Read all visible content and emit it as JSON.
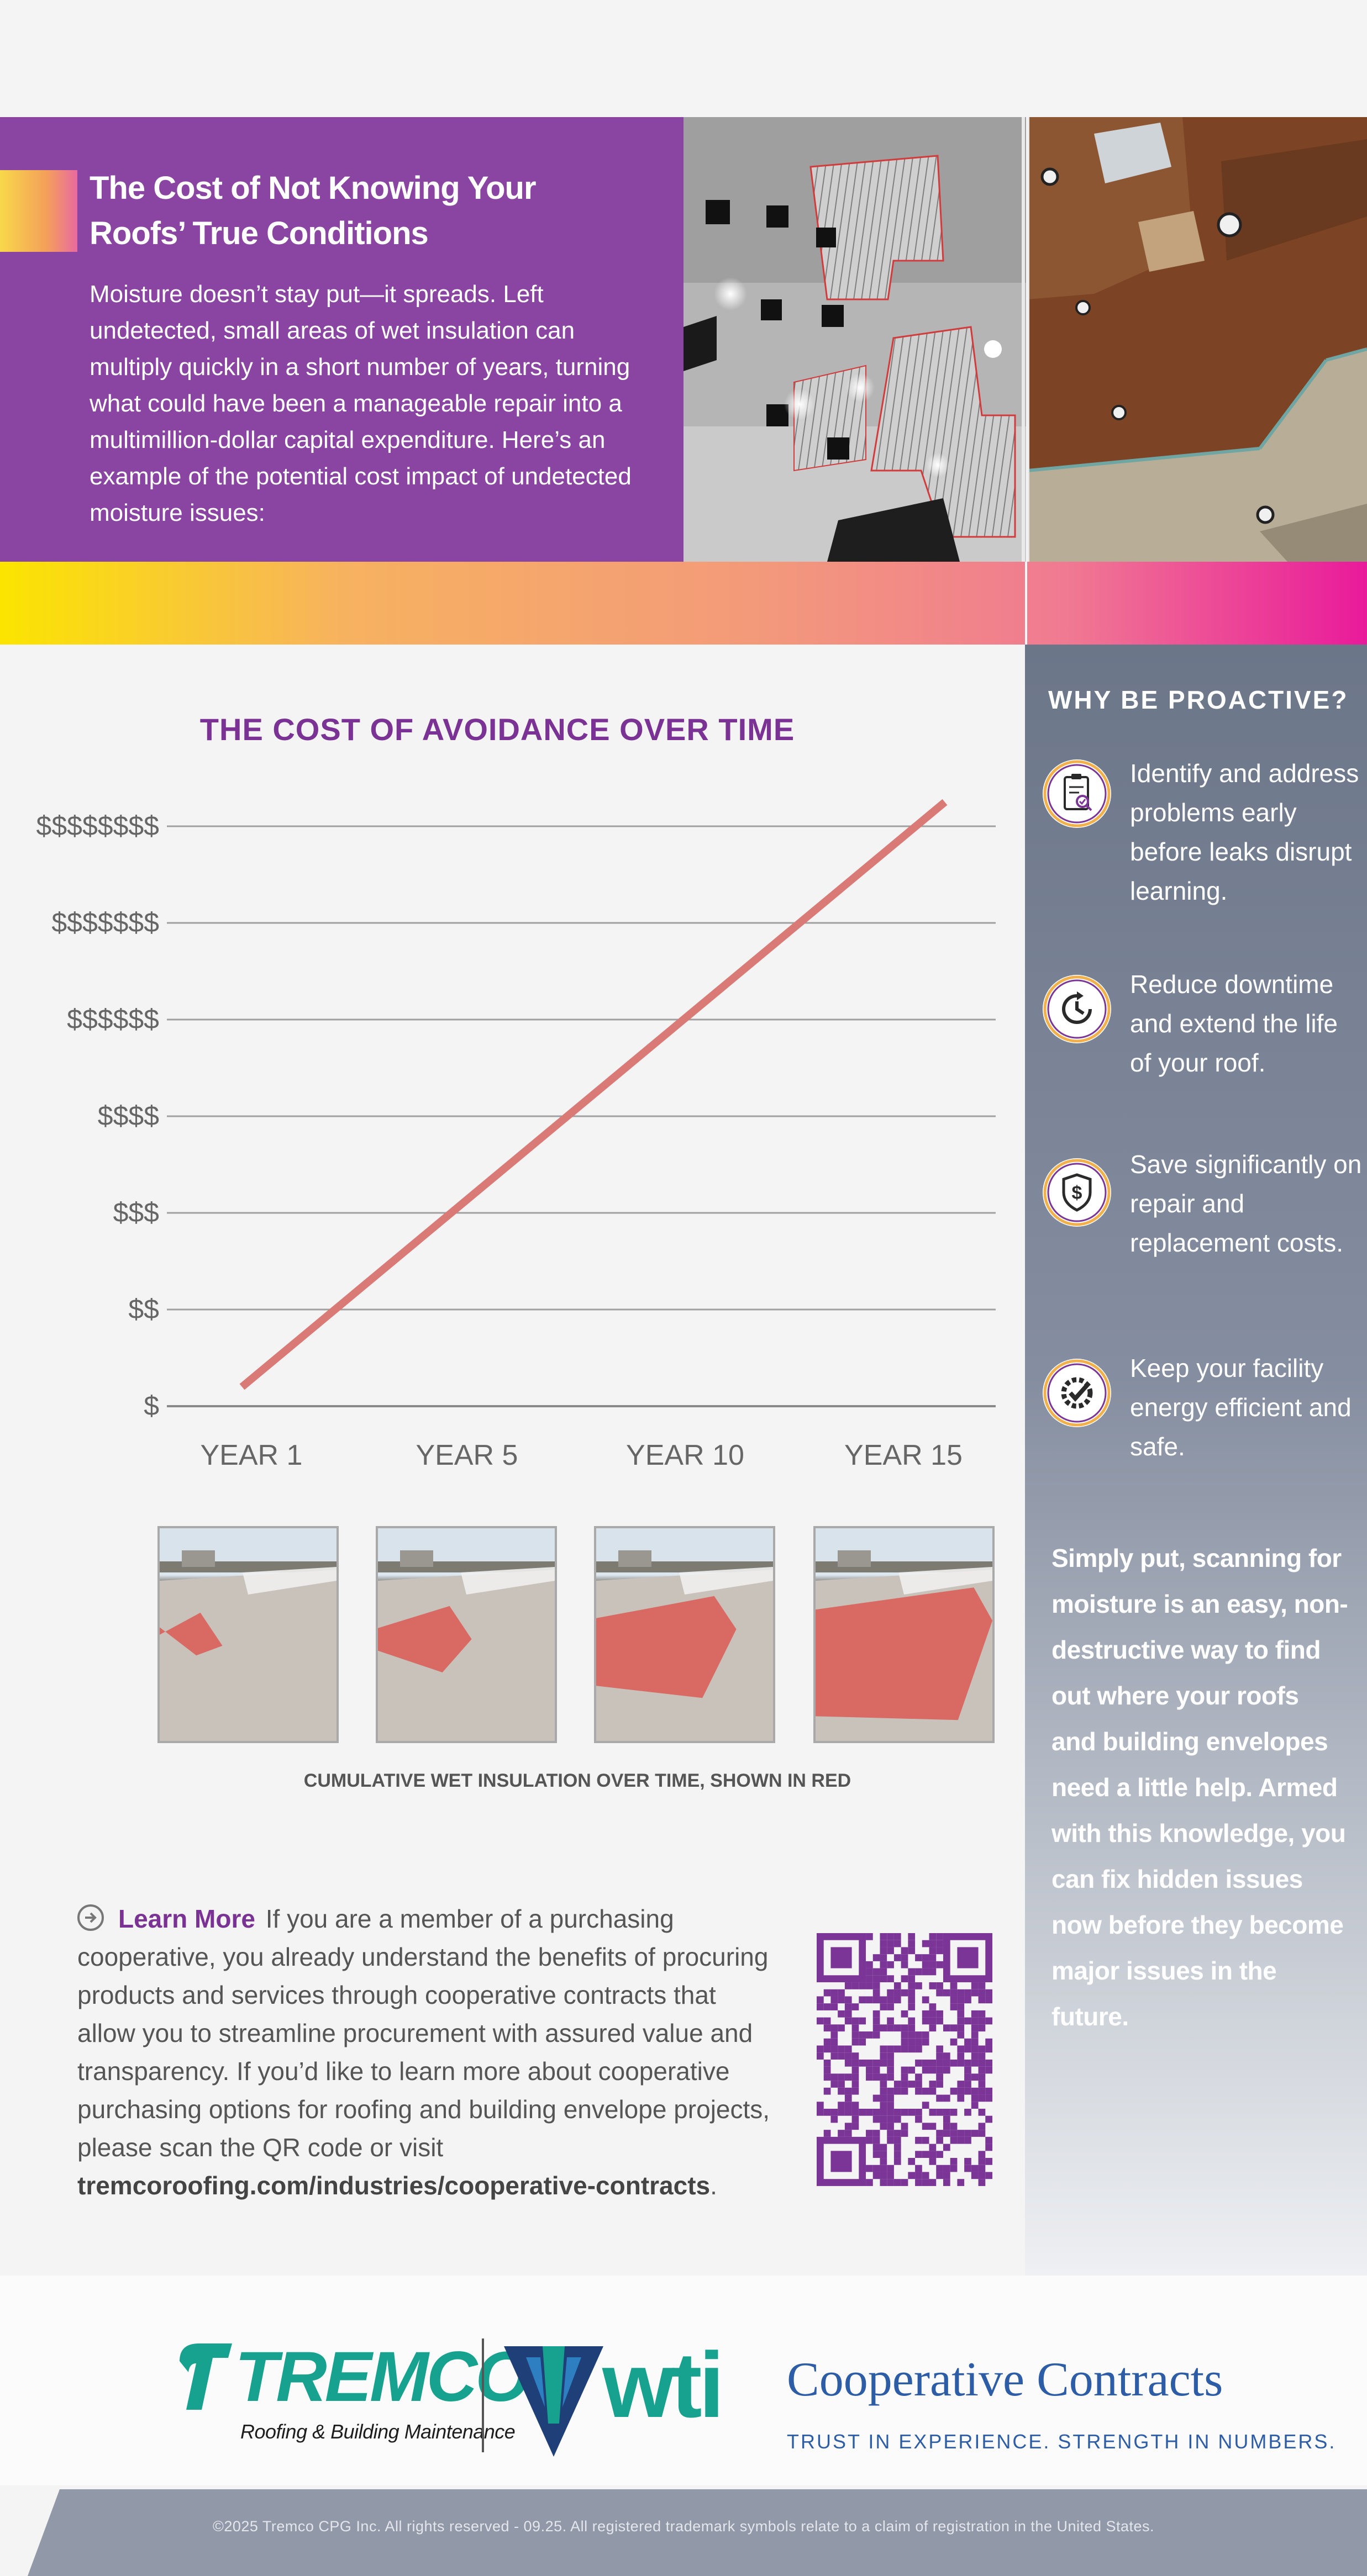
{
  "hero": {
    "title_line1": "The Cost of Not Knowing Your",
    "title_line2": "Roofs’ True Conditions",
    "body": "Moisture doesn’t stay put—it spreads. Left undetected, small areas of wet insulation can multiply quickly in a short number of years, turning what could have been a manageable repair into a multimillion-dollar capital expenditure. Here’s an example of the potential cost impact of undetected moisture issues:"
  },
  "sidebar": {
    "title": "WHY BE PROACTIVE?",
    "benefits": [
      {
        "icon": "clipboard-check-icon",
        "text": "Identify and address problems early before leaks disrupt learning."
      },
      {
        "icon": "clock-icon",
        "text": "Reduce downtime and extend the life of your roof."
      },
      {
        "icon": "dollar-shield-icon",
        "text": "Save significantly on repair and replacement costs."
      },
      {
        "icon": "gear-check-icon",
        "text": "Keep your facility energy efficient and safe."
      }
    ],
    "summary": "Simply put, scanning for moisture is an easy, non-destructive way to find out where your roofs and building envelopes need a little help. Armed with this knowledge, you can fix hidden issues now before they become major issues in the future.",
    "icon_color": "#7b3597",
    "ring_color": "#f2b04a"
  },
  "chart_data": {
    "type": "line",
    "title": "THE COST OF AVOIDANCE OVER TIME",
    "categories": [
      "YEAR 1",
      "YEAR 5",
      "YEAR 10",
      "YEAR 15"
    ],
    "y_tick_labels": [
      "$",
      "$$",
      "$$$",
      "$$$$",
      "$$$$$$",
      "$$$$$$$",
      "$$$$$$$$"
    ],
    "series": [
      {
        "x": [
          1,
          16
        ],
        "y": [
          0.2,
          6.25
        ]
      }
    ],
    "ylim": [
      0,
      6
    ],
    "grid": true,
    "line_color": "#d97a76"
  },
  "thumbnails": {
    "caption": "CUMULATIVE WET INSULATION OVER TIME, SHOWN IN RED",
    "wet_fraction": [
      0.12,
      0.32,
      0.62,
      0.88
    ],
    "wet_color": "#d96a63"
  },
  "learn_more": {
    "label": "Learn More",
    "text": "If you are a member of a purchasing cooperative, you already understand the benefits of procuring products and services through cooperative contracts that allow you to streamline procurement with assured value and transparency. If you’d like to learn more about cooperative purchasing options for roofing and building envelope projects, please scan the QR code or visit ",
    "url": "tremcoroofing.com/industries/cooperative-contracts",
    "url_suffix": ".",
    "qr_color": "#7b3597"
  },
  "logos": {
    "tremco": "TREMCO",
    "tremco_tagline": "Roofing & Building Maintenance",
    "wti": "wti",
    "coop_title": "Cooperative Contracts",
    "coop_tagline": "TRUST IN EXPERIENCE. STRENGTH IN NUMBERS."
  },
  "footer": {
    "copyright": "©2025 Tremco CPG Inc. All rights reserved - 09.25. All registered trademark symbols relate to a claim of registration in the United States."
  }
}
